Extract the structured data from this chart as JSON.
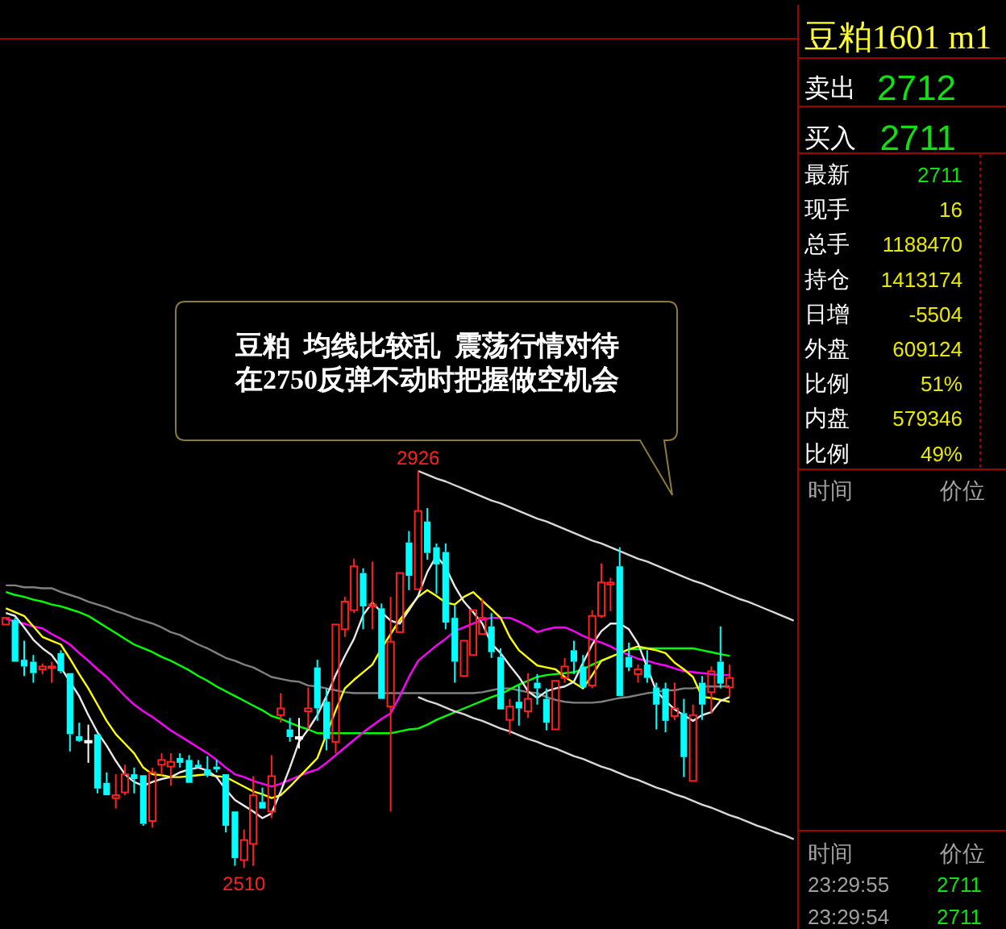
{
  "chart_data": [
    {
      "type": "candlestick",
      "categories": [
        null,
        null,
        null,
        null,
        null,
        null,
        null,
        null,
        null,
        null,
        null,
        null,
        null,
        null,
        null,
        null,
        null,
        null,
        null,
        null,
        null,
        null,
        null,
        null,
        null,
        null,
        null,
        null,
        null,
        null,
        null,
        null,
        null,
        null,
        null,
        null,
        null,
        null,
        null,
        null,
        null,
        null,
        null,
        null,
        null,
        null,
        null,
        null,
        null,
        null,
        null,
        null,
        null,
        null,
        null,
        null,
        null,
        null,
        null,
        null,
        null,
        null,
        null,
        null,
        null,
        null,
        null,
        null,
        null,
        null,
        null,
        null,
        null,
        null,
        null,
        null,
        null,
        null,
        null,
        null,
        null,
        null,
        null,
        null,
        null,
        null,
        null
      ],
      "ohlc": [
        [
          2765,
          2772,
          2765,
          2772
        ],
        [
          2770,
          2772,
          2726,
          2726
        ],
        [
          2728,
          2748,
          2711,
          2721
        ],
        [
          2726,
          2733,
          2704,
          2714
        ],
        [
          2718,
          2724,
          2713,
          2721
        ],
        [
          2720,
          2726,
          2704,
          2721
        ],
        [
          2735,
          2738,
          2714,
          2716
        ],
        [
          2714,
          2714,
          2632,
          2650
        ],
        [
          2648,
          2662,
          2642,
          2643
        ],
        [
          2643,
          2660,
          2620,
          2643
        ],
        [
          2650,
          2650,
          2588,
          2593
        ],
        [
          2599,
          2610,
          2586,
          2586
        ],
        [
          2583,
          2608,
          2572,
          2586
        ],
        [
          2589,
          2618,
          2586,
          2608
        ],
        [
          2608,
          2615,
          2588,
          2603
        ],
        [
          2607,
          2607,
          2554,
          2556
        ],
        [
          2559,
          2615,
          2552,
          2610
        ],
        [
          2618,
          2630,
          2607,
          2623
        ],
        [
          2616,
          2630,
          2596,
          2621
        ],
        [
          2625,
          2630,
          2615,
          2620
        ],
        [
          2623,
          2628,
          2599,
          2599
        ],
        [
          2618,
          2623,
          2615,
          2615
        ],
        [
          2613,
          2627,
          2605,
          2607
        ],
        [
          2616,
          2623,
          2610,
          2613
        ],
        [
          2608,
          2608,
          2547,
          2554
        ],
        [
          2569,
          2569,
          2512,
          2520
        ],
        [
          2518,
          2550,
          2510,
          2539
        ],
        [
          2535,
          2606,
          2512,
          2586
        ],
        [
          2579,
          2594,
          2572,
          2572
        ],
        [
          2569,
          2628,
          2562,
          2606
        ],
        [
          2670,
          2693,
          2662,
          2677
        ],
        [
          2655,
          2667,
          2642,
          2647
        ],
        [
          2647,
          2667,
          2635,
          2647
        ],
        [
          2674,
          2699,
          2655,
          2677
        ],
        [
          2720,
          2728,
          2664,
          2677
        ],
        [
          2684,
          2698,
          2633,
          2645
        ],
        [
          2642,
          2765,
          2630,
          2765
        ],
        [
          2760,
          2794,
          2752,
          2789
        ],
        [
          2780,
          2834,
          2777,
          2826
        ],
        [
          2819,
          2824,
          2760,
          2784
        ],
        [
          2784,
          2831,
          2760,
          2786
        ],
        [
          2782,
          2787,
          2687,
          2687
        ],
        [
          2679,
          2794,
          2569,
          2747
        ],
        [
          2757,
          2819,
          2757,
          2819
        ],
        [
          2851,
          2863,
          2801,
          2816
        ],
        [
          2802,
          2926,
          2802,
          2884
        ],
        [
          2873,
          2887,
          2833,
          2840
        ],
        [
          2846,
          2850,
          2797,
          2828
        ],
        [
          2841,
          2850,
          2760,
          2767
        ],
        [
          2772,
          2785,
          2704,
          2726
        ],
        [
          2711,
          2748,
          2711,
          2748
        ],
        [
          2733,
          2780,
          2733,
          2780
        ],
        [
          2755,
          2792,
          2755,
          2772
        ],
        [
          2763,
          2777,
          2730,
          2736
        ],
        [
          2731,
          2740,
          2676,
          2676
        ],
        [
          2665,
          2687,
          2650,
          2679
        ],
        [
          2684,
          2701,
          2659,
          2677
        ],
        [
          2674,
          2714,
          2667,
          2687
        ],
        [
          2704,
          2713,
          2681,
          2698
        ],
        [
          2687,
          2698,
          2654,
          2662
        ],
        [
          2655,
          2706,
          2655,
          2706
        ],
        [
          2709,
          2730,
          2704,
          2721
        ],
        [
          2738,
          2748,
          2713,
          2726
        ],
        [
          2721,
          2733,
          2699,
          2699
        ],
        [
          2701,
          2780,
          2698,
          2774
        ],
        [
          2774,
          2829,
          2772,
          2809
        ],
        [
          2807,
          2814,
          2779,
          2809
        ],
        [
          2826,
          2846,
          2690,
          2690
        ],
        [
          2731,
          2746,
          2716,
          2720
        ],
        [
          2713,
          2723,
          2704,
          2718
        ],
        [
          2723,
          2738,
          2704,
          2709
        ],
        [
          2699,
          2704,
          2655,
          2681
        ],
        [
          2698,
          2704,
          2652,
          2664
        ],
        [
          2669,
          2704,
          2665,
          2677
        ],
        [
          2672,
          2687,
          2605,
          2626
        ],
        [
          2601,
          2681,
          2601,
          2670
        ],
        [
          2704,
          2711,
          2665,
          2681
        ],
        [
          2694,
          2721,
          2672,
          2716
        ],
        [
          2726,
          2763,
          2698,
          2703
        ],
        [
          2699,
          2723,
          2689,
          2709
        ],
        null,
        null,
        null,
        null,
        null,
        null,
        null
      ],
      "colors": [
        "#ff2020",
        "#00ffff",
        "#00ffff",
        "#00ffff",
        "#ff2020",
        "#ff2020",
        "#00ffff",
        "#00ffff",
        "#00ffff",
        "#ffffff",
        "#00ffff",
        "#00ffff",
        "#ff2020",
        "#ff2020",
        "#00ffff",
        "#00ffff",
        "#ff2020",
        "#ff2020",
        "#ff2020",
        "#00ffff",
        "#00ffff",
        "#00ffff",
        "#00ffff",
        "#00ffff",
        "#00ffff",
        "#00ffff",
        "#ff2020",
        "#ff2020",
        "#00ffff",
        "#ff2020",
        "#ff2020",
        "#00ffff",
        "#ffffff",
        "#ff2020",
        "#00ffff",
        "#00ffff",
        "#ff2020",
        "#ff2020",
        "#ff2020",
        "#00ffff",
        "#ff2020",
        "#00ffff",
        "#ff2020",
        "#ff2020",
        "#00ffff",
        "#ff2020",
        "#00ffff",
        "#00ffff",
        "#00ffff",
        "#00ffff",
        "#ff2020",
        "#ff2020",
        "#ff2020",
        "#00ffff",
        "#00ffff",
        "#ff2020",
        "#00ffff",
        "#ff2020",
        "#00ffff",
        "#00ffff",
        "#ff2020",
        "#ff2020",
        "#00ffff",
        "#00ffff",
        "#ff2020",
        "#ff2020",
        "#ff2020",
        "#00ffff",
        "#00ffff",
        "#ff2020",
        "#00ffff",
        "#00ffff",
        "#00ffff",
        "#ff2020",
        "#00ffff",
        "#ff2020",
        "#00ffff",
        "#ff2020",
        "#00ffff",
        "#ff2020",
        null,
        null,
        null,
        null,
        null,
        null,
        null
      ],
      "series": [
        {
          "type": "line",
          "color": "#808080",
          "values": [
            2806,
            2806,
            2804,
            2804,
            2803,
            2803,
            2799,
            2796,
            2793,
            2789,
            2786,
            2783,
            2779,
            2776,
            2772,
            2769,
            2766,
            2762,
            2757,
            2754,
            2749,
            2744,
            2740,
            2735,
            2730,
            2727,
            2723,
            2720,
            2715,
            2710,
            2708,
            2706,
            2705,
            2701,
            2700,
            2698,
            2696,
            2694,
            2693,
            2693,
            2693,
            2693,
            2693,
            2693,
            2693,
            2693,
            2693,
            2693,
            2693,
            2693,
            2693,
            2693,
            2694,
            2696,
            2698,
            2698,
            2696,
            2694,
            2693,
            2689,
            2686,
            2684,
            2683,
            2683,
            2683,
            2684,
            2686,
            2688,
            2689,
            2691,
            2693,
            2694,
            2696,
            2696,
            2698,
            2698,
            2700,
            2700,
            2700,
            2700,
            null,
            null,
            null,
            null,
            null,
            null,
            null
          ]
        },
        {
          "type": "line",
          "color": "#00ff00",
          "values": [
            2799,
            2796,
            2794,
            2791,
            2789,
            2786,
            2784,
            2781,
            2778,
            2774,
            2768,
            2762,
            2756,
            2750,
            2744,
            2740,
            2736,
            2731,
            2727,
            2722,
            2717,
            2711,
            2706,
            2700,
            2695,
            2690,
            2685,
            2680,
            2675,
            2669,
            2666,
            2662,
            2658,
            2655,
            2651,
            2651,
            2651,
            2651,
            2651,
            2651,
            2651,
            2651,
            2651,
            2653,
            2655,
            2656,
            2660,
            2665,
            2669,
            2673,
            2677,
            2681,
            2685,
            2689,
            2692,
            2697,
            2702,
            2706,
            2710,
            2712,
            2713,
            2714,
            2715,
            2718,
            2723,
            2727,
            2731,
            null,
            2739,
            2739,
            2740,
            2740,
            2740,
            2740,
            2740,
            2740,
            2738,
            2736,
            2734,
            2732,
            null,
            null,
            null,
            null,
            null,
            null,
            null
          ]
        },
        {
          "type": "line",
          "color": "#ff00ff",
          "values": [
            2771,
            2768,
            2766,
            2763,
            2761,
            2755,
            2750,
            2744,
            2735,
            2727,
            2718,
            2710,
            2700,
            2690,
            2681,
            2674,
            2668,
            2661,
            2654,
            2648,
            2642,
            2636,
            2630,
            2623,
            2615,
            2608,
            2605,
            2601,
            2598,
            2595,
            2598,
            2602,
            2606,
            2610,
            2613,
            2620,
            2628,
            2636,
            2644,
            2652,
            2659,
            2666,
            2672,
            2690,
            2710,
            2727,
            2735,
            2743,
            2750,
            2758,
            2762,
            2766,
            2770,
            2772,
            2772,
            2772,
            2768,
            2763,
            2757,
            2760,
            2762,
            2762,
            2758,
            2753,
            2749,
            2746,
            2742,
            2737,
            2733,
            2729,
            2727,
            2724,
            2722,
            2719,
            2716,
            2715,
            2714,
            2713,
            2712,
            2712,
            null,
            null,
            null,
            null,
            null,
            null,
            null
          ]
        },
        {
          "type": "line",
          "color": "#ffff00",
          "values": [
            2782,
            2778,
            2774,
            2763,
            2752,
            2748,
            2744,
            2729,
            2713,
            2698,
            2681,
            2664,
            2650,
            2640,
            2630,
            2615,
            2608,
            2607,
            2605,
            2605,
            2606,
            2607,
            2608,
            2606,
            2605,
            2600,
            2595,
            2590,
            2587,
            2583,
            2586,
            2595,
            2605,
            2615,
            2625,
            2650,
            2675,
            2698,
            2707,
            2715,
            2723,
            2740,
            2755,
            2770,
            2782,
            2794,
            2801,
            2795,
            2788,
            2786,
            2794,
            2799,
            2790,
            2781,
            2772,
            2752,
            2738,
            2730,
            2722,
            2720,
            2718,
            2710,
            2704,
            2698,
            2712,
            2727,
            2731,
            2735,
            2739,
            2742,
            2740,
            2738,
            2735,
            2725,
            2718,
            2710,
            2689,
            2688,
            2686,
            2684,
            null,
            null,
            null,
            null,
            null,
            null,
            null
          ]
        },
        {
          "type": "line",
          "color": "#e8e8e8",
          "values": [
            2777,
            2774,
            2762,
            2749,
            2740,
            2733,
            2720,
            2705,
            2690,
            2670,
            2652,
            2638,
            2622,
            2608,
            2600,
            2596,
            2600,
            2603,
            2605,
            2610,
            2613,
            2615,
            2612,
            2605,
            2592,
            2581,
            2575,
            2569,
            2562,
            2567,
            2590,
            2615,
            2642,
            2655,
            2670,
            2690,
            2712,
            2732,
            2750,
            2775,
            2788,
            2778,
            2769,
            2766,
            2780,
            2795,
            2820,
            2837,
            2825,
            2805,
            2789,
            2778,
            2766,
            2745,
            2735,
            2722,
            2710,
            2695,
            2688,
            2695,
            2698,
            2700,
            2705,
            2725,
            2744,
            2758,
            2766,
            2766,
            2760,
            2745,
            2720,
            2695,
            2685,
            2676,
            2670,
            2664,
            2670,
            2673,
            2685,
            2689,
            null,
            null,
            null,
            null,
            null,
            null,
            null
          ]
        },
        {
          "type": "line",
          "color": "#d8d8d8",
          "values": [
            null,
            null,
            null,
            null,
            null,
            null,
            null,
            null,
            null,
            null,
            null,
            null,
            null,
            null,
            null,
            null,
            null,
            null,
            null,
            null,
            null,
            null,
            null,
            null,
            null,
            null,
            null,
            null,
            null,
            null,
            null,
            null,
            null,
            null,
            null,
            null,
            null,
            null,
            null,
            null,
            null,
            null,
            null,
            null,
            null,
            2926,
            2922,
            2918,
            2915,
            2911,
            2907,
            2903,
            2899,
            2895,
            2892,
            2888,
            2884,
            2880,
            2876,
            2873,
            2869,
            2865,
            2861,
            2857,
            2853,
            2850,
            2846,
            2842,
            2838,
            2834,
            2831,
            2827,
            2823,
            2819,
            2815,
            2811,
            2808,
            2804,
            2800,
            2796,
            2792,
            2789,
            2785,
            2781,
            2777,
            2773,
            2769
          ]
        },
        {
          "type": "line",
          "color": "#d8d8d8",
          "values": [
            null,
            null,
            null,
            null,
            null,
            null,
            null,
            null,
            null,
            null,
            null,
            null,
            null,
            null,
            null,
            null,
            null,
            null,
            null,
            null,
            null,
            null,
            null,
            null,
            null,
            null,
            null,
            null,
            null,
            null,
            null,
            null,
            null,
            null,
            null,
            null,
            null,
            null,
            null,
            null,
            null,
            null,
            null,
            null,
            null,
            2689,
            2685,
            2682,
            2678,
            2674,
            2671,
            2667,
            2664,
            2660,
            2656,
            2653,
            2649,
            2645,
            2642,
            2638,
            2635,
            2631,
            2627,
            2624,
            2620,
            2616,
            2613,
            2609,
            2605,
            2602,
            2598,
            2594,
            2591,
            2587,
            2584,
            2580,
            2576,
            2573,
            2569,
            2565,
            2562,
            2558,
            2554,
            2551,
            2547,
            2544,
            2540
          ]
        }
      ],
      "annotations": [
        {
          "text": "2926",
          "y": 2926
        },
        {
          "text": "2510",
          "y": 2510
        },
        "豆粕  均线比较乱  震荡行情对待",
        "在2750反弹不动时把握做空机会"
      ]
    },
    {
      "type": "other",
      "title": "豆粕1601 m1",
      "annotations": [
        "卖出",
        "2712",
        "买入",
        "2711",
        "最新",
        "2711",
        "现手",
        "16",
        "总手",
        "1188470",
        "持仓",
        "1413174",
        "日增",
        "-5504",
        "外盘",
        "609124",
        "比例",
        "51%",
        "内盘",
        "579346",
        "比例",
        "49%",
        "时间",
        "价位",
        "时间",
        "价位",
        "23:29:55",
        "2711",
        "23:29:54",
        "2711"
      ]
    }
  ]
}
